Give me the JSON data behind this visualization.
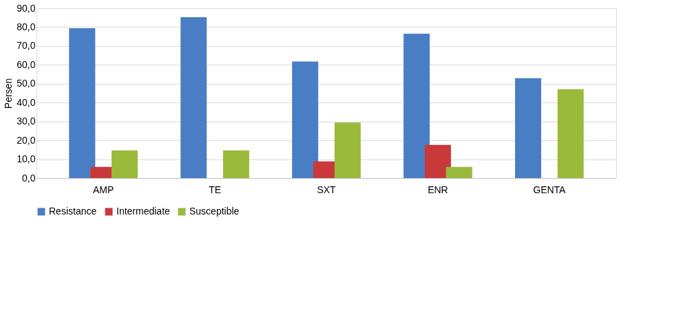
{
  "chart_data": {
    "type": "bar",
    "ylabel": "Persen",
    "categories": [
      "AMP",
      "TE",
      "SXT",
      "ENR",
      "GENTA"
    ],
    "series": [
      {
        "name": "Resistance",
        "color": "#4a7ec4",
        "values": [
          79.4,
          85.3,
          61.8,
          76.5,
          52.9
        ]
      },
      {
        "name": "Intermediate",
        "color": "#c9393a",
        "values": [
          5.9,
          0,
          8.8,
          17.6,
          0
        ]
      },
      {
        "name": "Susceptible",
        "color": "#9aba3c",
        "values": [
          14.7,
          14.7,
          29.4,
          5.9,
          47.1
        ]
      }
    ],
    "ylim": [
      0,
      90
    ],
    "yticks": [
      {
        "value": 0,
        "label": "0,0"
      },
      {
        "value": 10,
        "label": "10,0"
      },
      {
        "value": 20,
        "label": "20,0"
      },
      {
        "value": 30,
        "label": "30,0"
      },
      {
        "value": 40,
        "label": "40,0"
      },
      {
        "value": 50,
        "label": "50,0"
      },
      {
        "value": 60,
        "label": "60,0"
      },
      {
        "value": 70,
        "label": "70,0"
      },
      {
        "value": 80,
        "label": "80,0"
      },
      {
        "value": 90,
        "label": "90,0"
      }
    ],
    "grid": "y",
    "legend": "bottom"
  }
}
